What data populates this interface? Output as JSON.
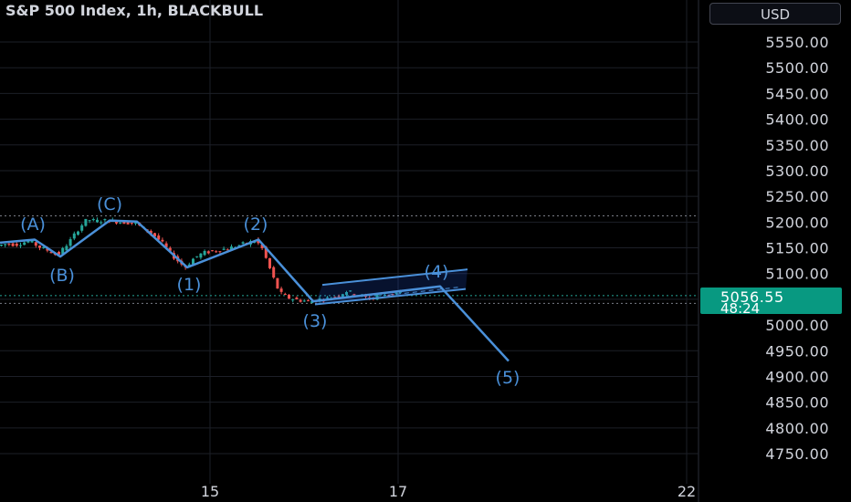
{
  "header": {
    "title": "S&P 500 Index, 1h, BLACKBULL",
    "currency": "USD"
  },
  "price_tag": {
    "price": "5056.55",
    "countdown": "48:24",
    "color": "#089981"
  },
  "colors": {
    "up": "#26a69a",
    "down": "#ef5350",
    "wave": "#4a90d9",
    "grid": "#1c1f27",
    "axis_text": "#d1d4dc"
  },
  "chart_data": {
    "type": "candlestick",
    "title": "S&P 500 Index, 1h, BLACKBULL",
    "y_axis": {
      "range": [
        4720,
        5570
      ],
      "ticks": [
        "5550.00",
        "5500.00",
        "5450.00",
        "5400.00",
        "5350.00",
        "5300.00",
        "5250.00",
        "5200.00",
        "5150.00",
        "5100.00",
        "5050.00",
        "5000.00",
        "4950.00",
        "4900.00",
        "4850.00",
        "4800.00",
        "4750.00"
      ]
    },
    "x_axis": {
      "ticks": [
        "15",
        "17",
        "22"
      ]
    },
    "reference_levels": [
      5212,
      5057,
      5042
    ],
    "last_price": 5056.55,
    "wave_labels": [
      "(A)",
      "(B)",
      "(C)",
      "(1)",
      "(2)",
      "(3)",
      "(4)",
      "(5)"
    ],
    "wave_path": [
      {
        "label": "start",
        "t": 0,
        "price": 5160
      },
      {
        "label": "(A)",
        "t": 38,
        "price": 5166
      },
      {
        "label": "(B)",
        "t": 66,
        "price": 5133
      },
      {
        "label": "(C)",
        "t": 120,
        "price": 5203
      },
      {
        "label": "c2",
        "t": 150,
        "price": 5201
      },
      {
        "label": "(1)",
        "t": 205,
        "price": 5112
      },
      {
        "label": "(2)",
        "t": 283,
        "price": 5166
      },
      {
        "label": "(3)",
        "t": 343,
        "price": 5046
      },
      {
        "label": "(4)",
        "t": 482,
        "price": 5075
      },
      {
        "label": "(5)",
        "t": 557,
        "price": 4930
      }
    ],
    "channel": {
      "lower": [
        {
          "t": 345,
          "price": 5040
        },
        {
          "t": 510,
          "price": 5070
        }
      ],
      "upper": [
        {
          "t": 353,
          "price": 5078
        },
        {
          "t": 512,
          "price": 5108
        }
      ],
      "midline": [
        {
          "t": 425,
          "price": 5058
        },
        {
          "t": 505,
          "price": 5074
        }
      ]
    },
    "candles_path": [
      [
        0,
        5154
      ],
      [
        10,
        5158
      ],
      [
        20,
        5156
      ],
      [
        35,
        5164
      ],
      [
        45,
        5152
      ],
      [
        55,
        5145
      ],
      [
        66,
        5136
      ],
      [
        72,
        5148
      ],
      [
        80,
        5165
      ],
      [
        90,
        5190
      ],
      [
        98,
        5205
      ],
      [
        108,
        5202
      ],
      [
        120,
        5203
      ],
      [
        135,
        5200
      ],
      [
        150,
        5198
      ],
      [
        160,
        5188
      ],
      [
        170,
        5176
      ],
      [
        180,
        5160
      ],
      [
        190,
        5138
      ],
      [
        200,
        5120
      ],
      [
        206,
        5113
      ],
      [
        215,
        5130
      ],
      [
        225,
        5140
      ],
      [
        240,
        5145
      ],
      [
        255,
        5150
      ],
      [
        270,
        5158
      ],
      [
        283,
        5164
      ],
      [
        290,
        5148
      ],
      [
        296,
        5120
      ],
      [
        302,
        5092
      ],
      [
        307,
        5070
      ],
      [
        312,
        5058
      ],
      [
        320,
        5052
      ],
      [
        330,
        5048
      ],
      [
        343,
        5046
      ],
      [
        352,
        5050
      ],
      [
        362,
        5052
      ],
      [
        372,
        5056
      ],
      [
        382,
        5066
      ],
      [
        392,
        5060
      ],
      [
        400,
        5055
      ],
      [
        410,
        5050
      ],
      [
        418,
        5062
      ],
      [
        426,
        5058
      ],
      [
        432,
        5060
      ],
      [
        438,
        5063
      ]
    ]
  }
}
